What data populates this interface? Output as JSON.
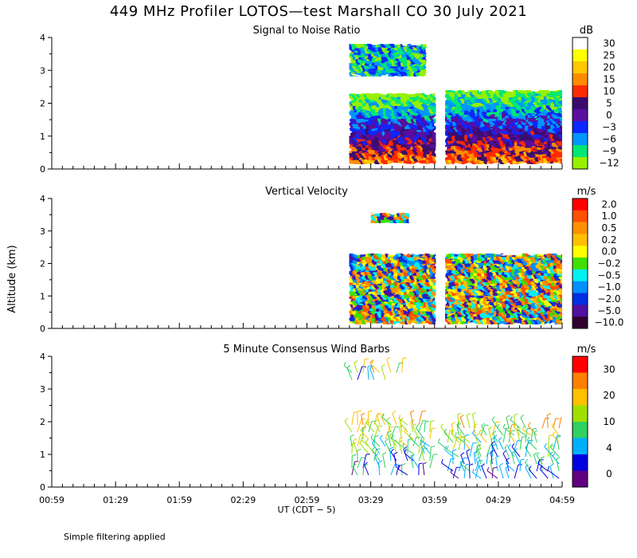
{
  "figure": {
    "title": "449 MHz Profiler LOTOS—test Marshall CO 30 July 2021",
    "ylabel": "Altitude (km)",
    "xlabel": "UT  (CDT − 5)",
    "footnote": "Simple filtering applied",
    "x_ticks": [
      "00:59",
      "01:29",
      "01:59",
      "02:29",
      "02:59",
      "03:29",
      "03:59",
      "04:29",
      "04:59"
    ],
    "y_ticks": [
      "0",
      "1",
      "2",
      "3",
      "4"
    ]
  },
  "chart_data": [
    {
      "type": "heatmap",
      "title": "Signal to Noise Ratio",
      "unit": "dB",
      "x_range": [
        "00:59",
        "04:59"
      ],
      "ylim": [
        0,
        4
      ],
      "colorbar": {
        "labels": [
          "30",
          "25",
          "20",
          "15",
          "10",
          "5",
          "0",
          "−3",
          "−6",
          "−9",
          "−12"
        ],
        "colors": [
          "#ffffff",
          "#ffff00",
          "#ffc800",
          "#ff8c00",
          "#ff2a00",
          "#3c0a6e",
          "#5a0fa0",
          "#0a28ff",
          "#0096ff",
          "#00e678",
          "#96f000"
        ]
      },
      "data_coverage": [
        {
          "x": [
            "03:19",
            "03:59"
          ],
          "y_km": [
            0.2,
            2.3
          ],
          "note": "profile layer"
        },
        {
          "x": [
            "03:19",
            "03:54"
          ],
          "y_km": [
            2.9,
            3.8
          ],
          "note": "upper layer"
        },
        {
          "x": [
            "04:04",
            "04:59"
          ],
          "y_km": [
            0.2,
            2.4
          ],
          "note": "profile layer"
        }
      ]
    },
    {
      "type": "heatmap",
      "title": "Vertical Velocity",
      "unit": "m/s",
      "x_range": [
        "00:59",
        "04:59"
      ],
      "ylim": [
        0,
        4
      ],
      "colorbar": {
        "labels": [
          "2.0",
          "1.0",
          "0.5",
          "0.2",
          "0.0",
          "−0.2",
          "−0.5",
          "−1.0",
          "−2.0",
          "−5.0",
          "−10.0"
        ],
        "colors": [
          "#ff0000",
          "#ff5000",
          "#ff9000",
          "#ffc000",
          "#ffff00",
          "#40e000",
          "#00f0f0",
          "#0090ff",
          "#0030e0",
          "#5010a0",
          "#300030"
        ]
      },
      "data_coverage": [
        {
          "x": [
            "03:19",
            "03:58"
          ],
          "y_km": [
            0.15,
            2.3
          ]
        },
        {
          "x": [
            "03:29",
            "03:46"
          ],
          "y_km": [
            3.35,
            3.55
          ]
        },
        {
          "x": [
            "04:04",
            "04:59"
          ],
          "y_km": [
            0.15,
            2.3
          ]
        }
      ]
    },
    {
      "type": "scatter",
      "subtype": "wind-barbs",
      "title": "5 Minute Consensus Wind Barbs",
      "unit": "m/s",
      "x_range": [
        "00:59",
        "04:59"
      ],
      "ylim": [
        0,
        4
      ],
      "colorbar": {
        "labels": [
          "30",
          "20",
          "10",
          "4",
          "0"
        ],
        "colors": [
          "#ff0000",
          "#ff8000",
          "#ffc000",
          "#a0e000",
          "#30d060",
          "#00b0ff",
          "#0000e0",
          "#600080"
        ]
      },
      "data_coverage": [
        {
          "x": [
            "03:19",
            "03:59"
          ],
          "y_km": [
            0.2,
            2.0
          ]
        },
        {
          "x": [
            "03:19",
            "03:44"
          ],
          "y_km": [
            3.1,
            3.6
          ]
        },
        {
          "x": [
            "04:04",
            "04:59"
          ],
          "y_km": [
            0.2,
            1.9
          ]
        }
      ]
    }
  ]
}
